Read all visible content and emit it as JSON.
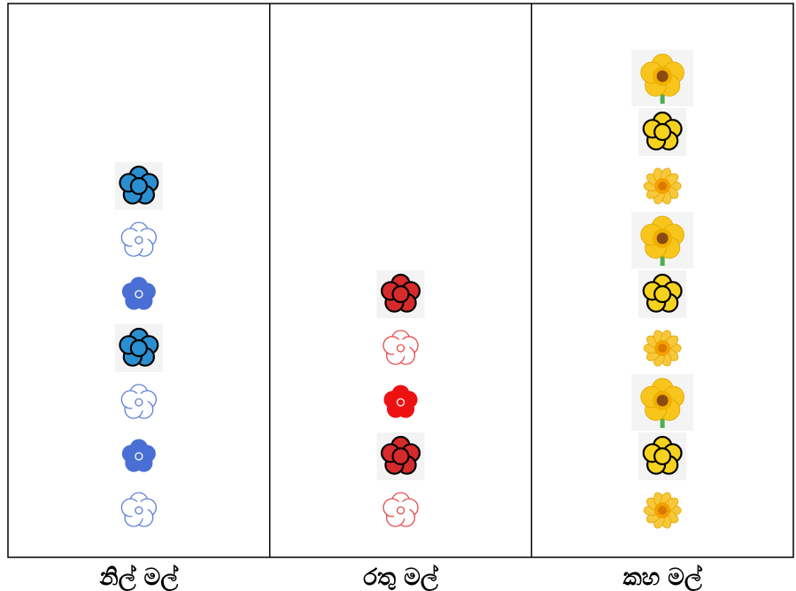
{
  "chart_data": {
    "type": "pictograph",
    "categories": [
      "නිල් මල්",
      "රතු මල්",
      "කහ මල්"
    ],
    "values": [
      7,
      5,
      9
    ],
    "grid": false,
    "series": [
      {
        "category": "නිල් මල්",
        "color": "#2a8fd0",
        "icons": [
          "cluster-flower-icon",
          "outline-flower-icon",
          "solid-flower-icon",
          "cluster-flower-icon",
          "outline-flower-icon",
          "solid-flower-icon",
          "outline-flower-icon"
        ],
        "palette": {
          "cluster": "#2a8fd0",
          "outline": "#5b7fd6",
          "solid": "#4a6fd4"
        }
      },
      {
        "category": "රතු මල්",
        "color": "#d62b2b",
        "icons": [
          "cluster-flower-icon",
          "outline-flower-icon",
          "solid-flower-icon",
          "cluster-flower-icon",
          "outline-flower-icon"
        ],
        "palette": {
          "cluster": "#d62b2b",
          "outline": "#e54b4b",
          "solid": "#ee1111"
        }
      },
      {
        "category": "කහ මල්",
        "color": "#f2c21a",
        "icons": [
          "emoji-flower-icon",
          "cluster-flower-icon",
          "daisy-flower-icon",
          "emoji-flower-icon",
          "cluster-flower-icon",
          "daisy-flower-icon",
          "emoji-flower-icon",
          "cluster-flower-icon",
          "daisy-flower-icon"
        ],
        "palette": {
          "cluster": "#f6d21e",
          "emoji": "#f8c51c",
          "daisy": "#f6c83a"
        }
      }
    ]
  }
}
